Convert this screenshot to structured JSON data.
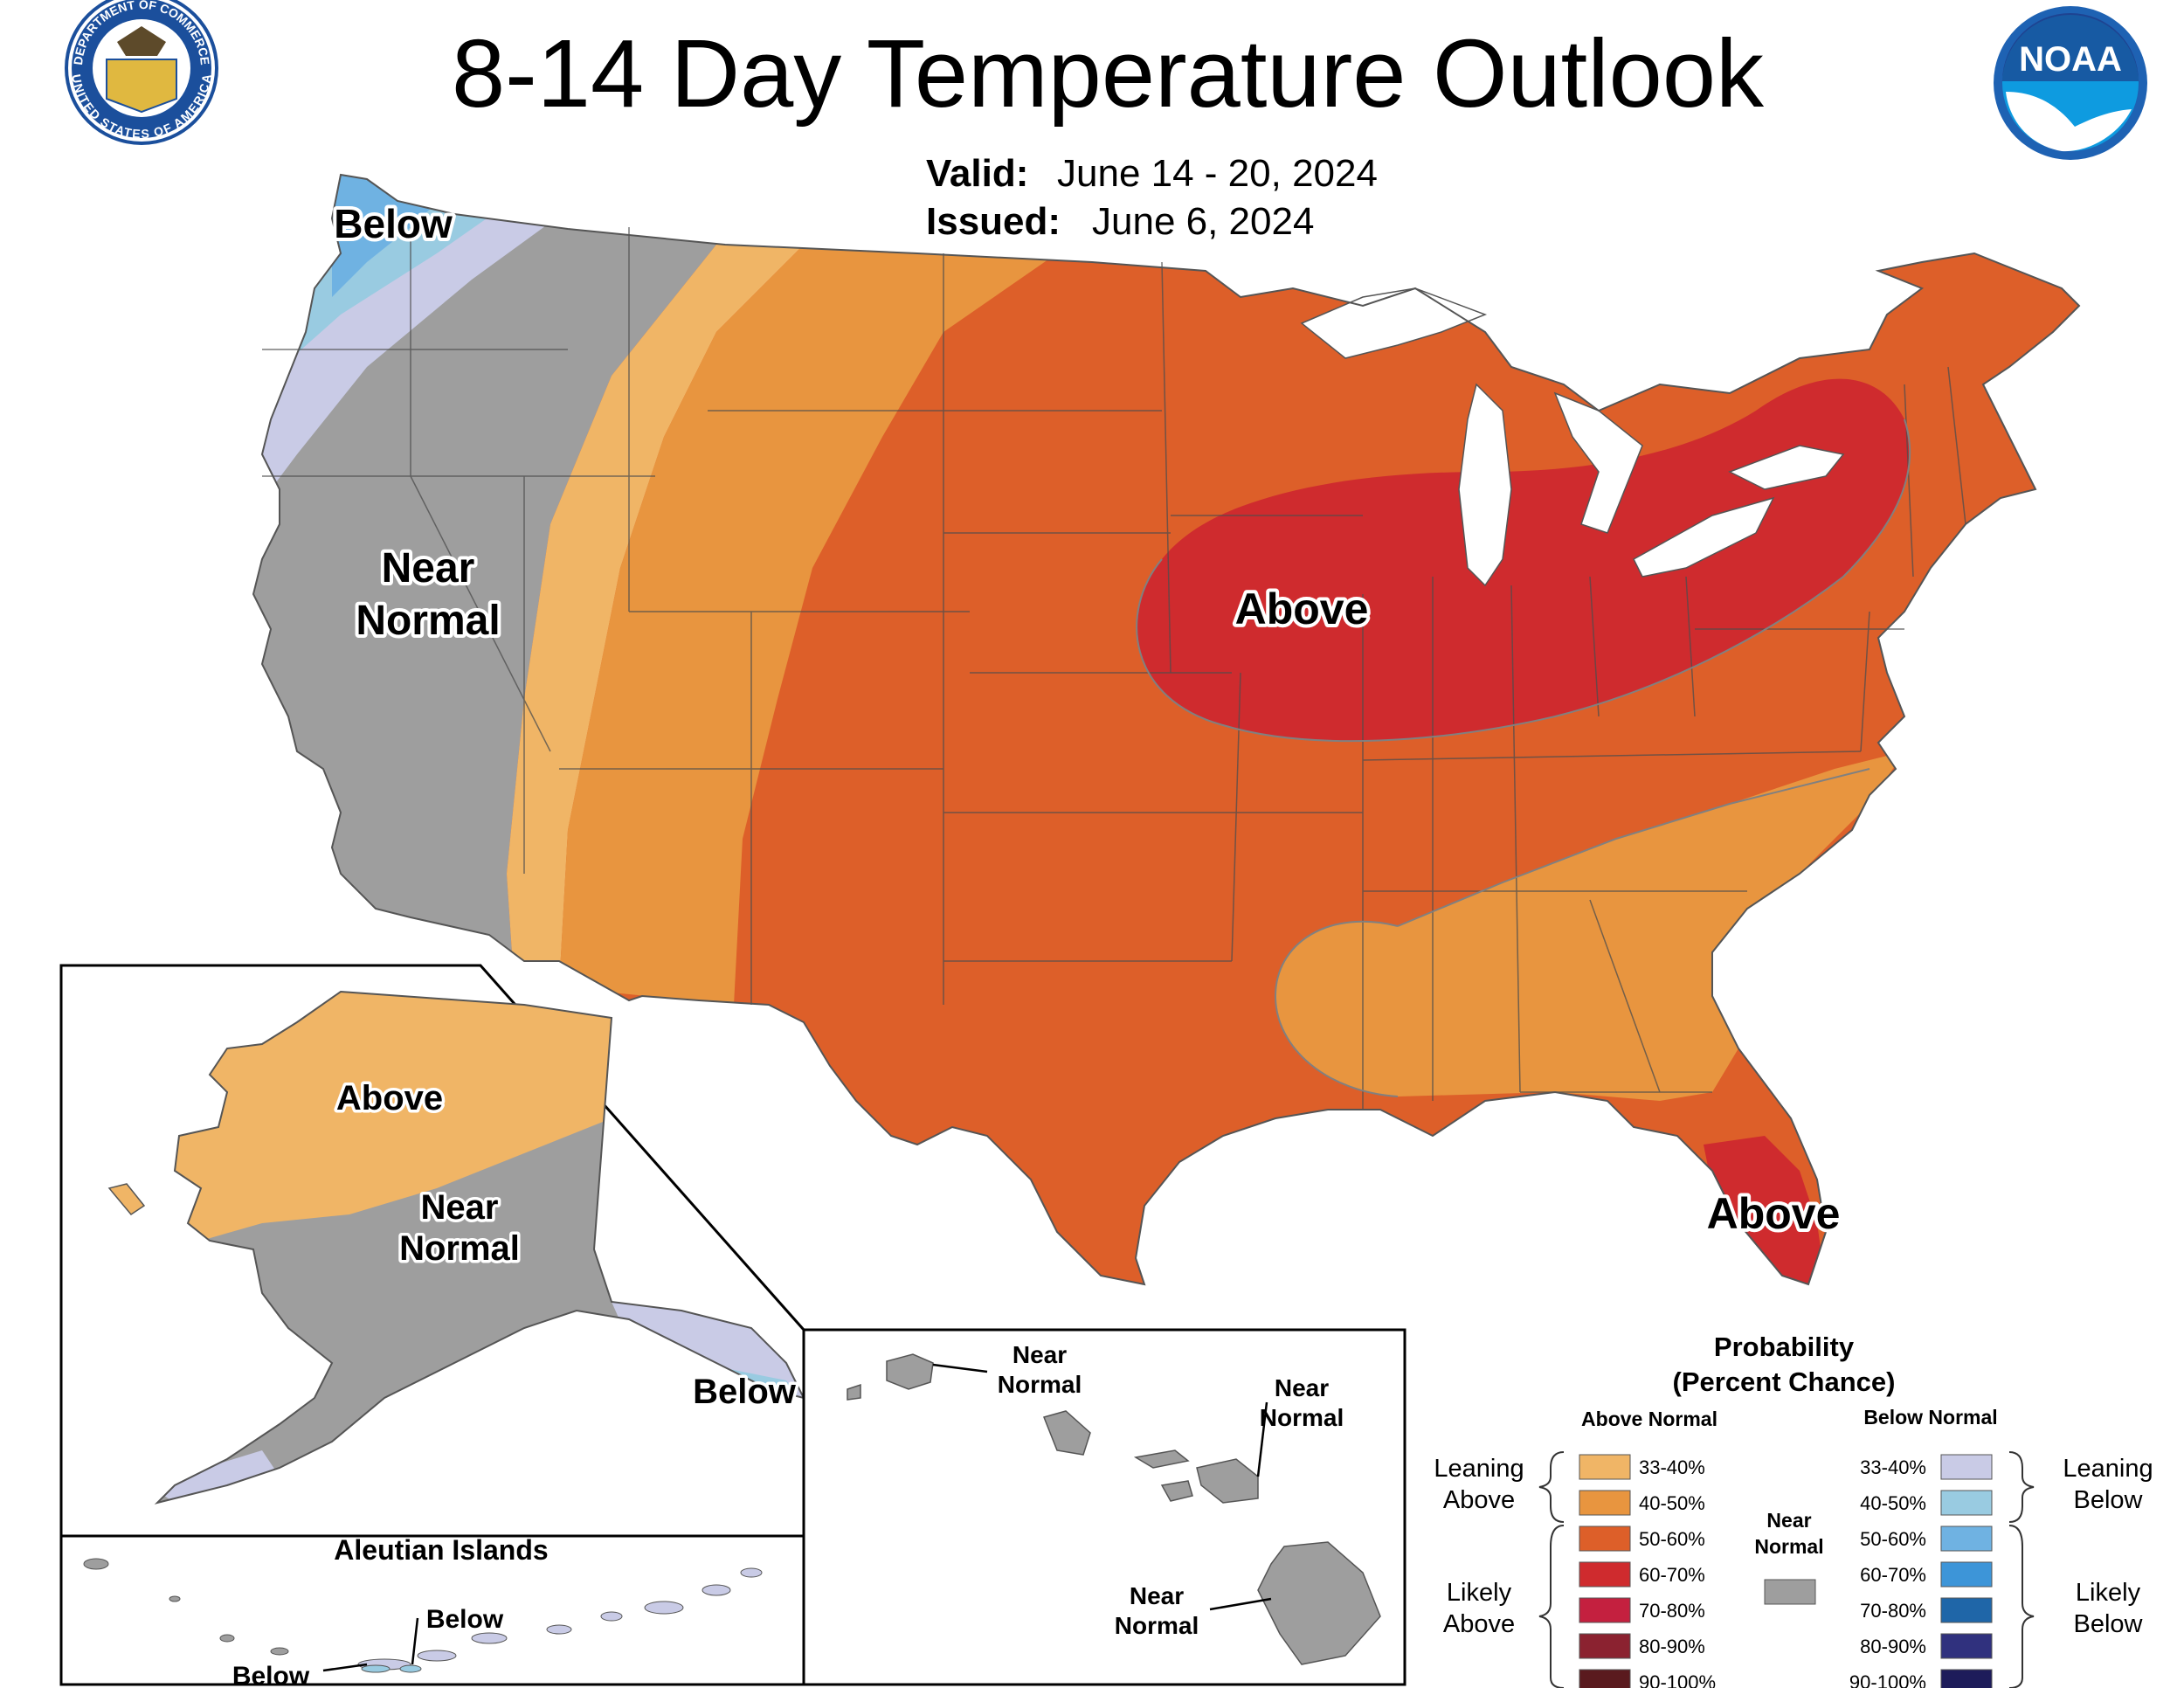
{
  "header": {
    "title": "8-14 Day Temperature Outlook",
    "valid_label": "Valid:",
    "valid_value": "June 14 - 20, 2024",
    "issued_label": "Issued:",
    "issued_value": "June 6, 2024"
  },
  "logos": {
    "commerce_seal_text_top": "DEPARTMENT OF COMMERCE",
    "commerce_seal_text_bottom": "UNITED STATES OF AMERICA",
    "noaa_text": "NOAA"
  },
  "conus_labels": {
    "northwest": "Below",
    "west_line1": "Near",
    "west_line2": "Normal",
    "midwest": "Above",
    "florida": "Above"
  },
  "alaska_labels": {
    "north": "Above",
    "central_line1": "Near",
    "central_line2": "Normal",
    "southeast": "Below"
  },
  "aleutian": {
    "title": "Aleutian Islands",
    "label_east": "Below",
    "label_west": "Below"
  },
  "hawaii_labels": {
    "kauai_line1": "Near",
    "kauai_line2": "Normal",
    "maui_line1": "Near",
    "maui_line2": "Normal",
    "big_island_line1": "Near",
    "big_island_line2": "Normal"
  },
  "legend": {
    "title_line1": "Probability",
    "title_line2": "(Percent Chance)",
    "above_header": "Above Normal",
    "below_header": "Below Normal",
    "near_line1": "Near",
    "near_line2": "Normal",
    "leaning_above_line1": "Leaning",
    "leaning_above_line2": "Above",
    "likely_above_line1": "Likely",
    "likely_above_line2": "Above",
    "leaning_below_line1": "Leaning",
    "leaning_below_line2": "Below",
    "likely_below_line1": "Likely",
    "likely_below_line2": "Below",
    "above_bins": [
      {
        "label": "33-40%",
        "color": "#f0b566"
      },
      {
        "label": "40-50%",
        "color": "#e8953f"
      },
      {
        "label": "50-60%",
        "color": "#dd5f29"
      },
      {
        "label": "60-70%",
        "color": "#cf2b2e"
      },
      {
        "label": "70-80%",
        "color": "#c4203f"
      },
      {
        "label": "80-90%",
        "color": "#8b2230"
      },
      {
        "label": "90-100%",
        "color": "#5a1a1e"
      }
    ],
    "below_bins": [
      {
        "label": "33-40%",
        "color": "#c9cbe6"
      },
      {
        "label": "40-50%",
        "color": "#99cbe1"
      },
      {
        "label": "50-60%",
        "color": "#6fb2e2"
      },
      {
        "label": "60-70%",
        "color": "#3d95d8"
      },
      {
        "label": "70-80%",
        "color": "#1f66a8"
      },
      {
        "label": "80-90%",
        "color": "#30317e"
      },
      {
        "label": "90-100%",
        "color": "#1d1c5a"
      }
    ],
    "near_color": "#9e9e9e"
  },
  "colors": {
    "near_normal": "#9e9e9e",
    "below_33_40": "#c9cbe6",
    "below_40_50": "#99cbe1",
    "below_50_60": "#6fb2e2",
    "above_33_40": "#f0b566",
    "above_40_50": "#e8953f",
    "above_50_60": "#dd5f29",
    "above_60_70": "#cf2b2e"
  }
}
